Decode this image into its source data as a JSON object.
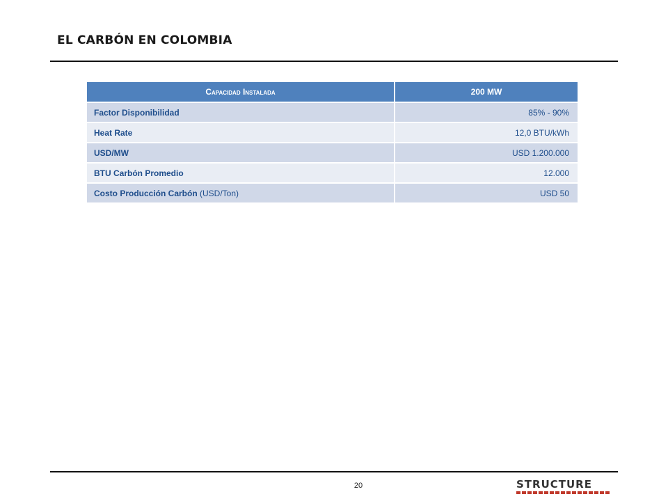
{
  "title": "EL CARBÓN EN COLOMBIA",
  "table": {
    "header": {
      "label": "Capacidad Instalada",
      "value": "200 MW"
    },
    "rows": [
      {
        "label": "Factor Disponibilidad",
        "note": "",
        "value": "85% - 90%"
      },
      {
        "label": "Heat Rate",
        "note": "",
        "value": "12,0 BTU/kWh"
      },
      {
        "label": "USD/MW",
        "note": "",
        "value": "USD 1.200.000"
      },
      {
        "label": "BTU Carbón Promedio",
        "note": "",
        "value": "12.000"
      },
      {
        "label": "Costo Producción  Carbón",
        "note": " (USD/Ton)",
        "value": "USD 50"
      }
    ]
  },
  "footer": {
    "page_number": "20",
    "logo": "STRUCTURE"
  },
  "colors": {
    "header_bg": "#4f81bd",
    "row_odd": "#d0d8e8",
    "row_even": "#e9edf4",
    "text_blue": "#1f4e8c",
    "logo_accent": "#c0392b"
  }
}
